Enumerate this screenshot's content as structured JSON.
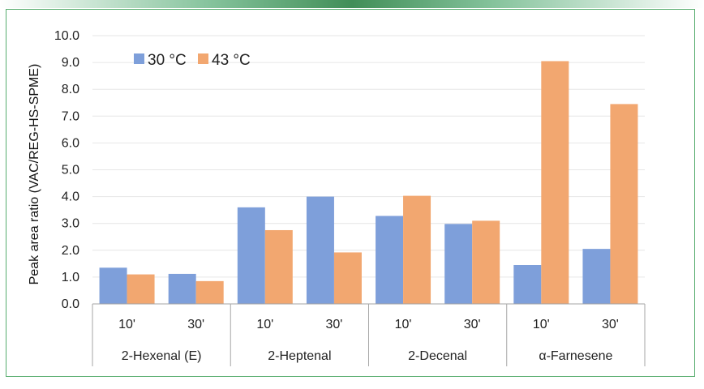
{
  "colors": {
    "series_30": "#7e9fda",
    "series_43": "#f2a770",
    "frame": "#57ad6e",
    "grid": "#e6e6e6",
    "axis": "#a6a6a6"
  },
  "chart_data": {
    "type": "bar",
    "ylabel": "Peak area ratio (VAC/REG-HS-SPME)",
    "ylim": [
      0,
      10
    ],
    "yticks": [
      "0.0",
      "1.0",
      "2.0",
      "3.0",
      "4.0",
      "5.0",
      "6.0",
      "7.0",
      "8.0",
      "9.0",
      "10.0"
    ],
    "grid": true,
    "legend_position": "top-left",
    "groups": [
      {
        "label": "2-Hexenal (E)",
        "subcategories": [
          "10'",
          "30'"
        ]
      },
      {
        "label": "2-Heptenal",
        "subcategories": [
          "10'",
          "30'"
        ]
      },
      {
        "label": "2-Decenal",
        "subcategories": [
          "10'",
          "30'"
        ]
      },
      {
        "label": "α-Farnesene",
        "subcategories": [
          "10'",
          "30'"
        ]
      }
    ],
    "series": [
      {
        "name": "30 °C",
        "values": [
          1.35,
          1.12,
          3.6,
          4.0,
          3.28,
          2.98,
          1.45,
          2.05
        ]
      },
      {
        "name": "43 °C",
        "values": [
          1.1,
          0.85,
          2.75,
          1.92,
          4.03,
          3.1,
          9.05,
          7.45
        ]
      }
    ]
  }
}
